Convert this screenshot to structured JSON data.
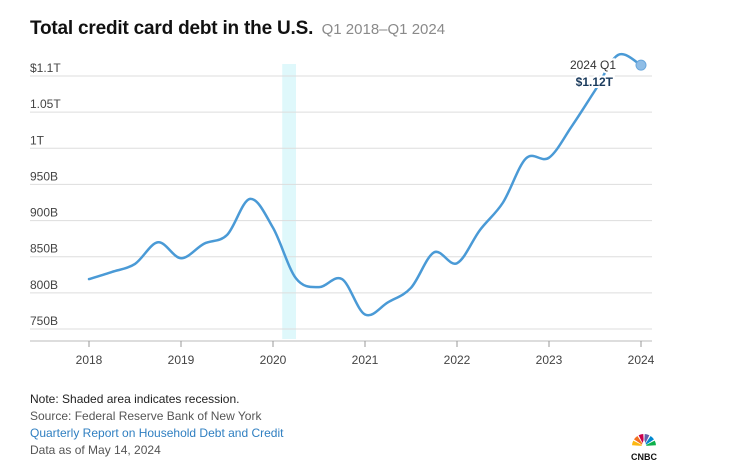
{
  "header": {
    "title": "Total credit card debt in the U.S.",
    "subtitle": "Q1 2018–Q1 2024"
  },
  "chart_data": {
    "type": "line",
    "title": "Total credit card debt in the U.S.",
    "subtitle": "Q1 2018–Q1 2024",
    "xlabel": "",
    "ylabel": "",
    "xlim": [
      2018,
      2024
    ],
    "ylim": [
      740,
      1120
    ],
    "y_ticks": [
      {
        "value": 750,
        "label": "750B"
      },
      {
        "value": 800,
        "label": "800B"
      },
      {
        "value": 850,
        "label": "850B"
      },
      {
        "value": 900,
        "label": "900B"
      },
      {
        "value": 950,
        "label": "950B"
      },
      {
        "value": 1000,
        "label": "1T"
      },
      {
        "value": 1050,
        "label": "1.05T"
      },
      {
        "value": 1100,
        "label": "$1.1T"
      }
    ],
    "x_ticks": [
      {
        "value": 2018,
        "label": "2018"
      },
      {
        "value": 2019,
        "label": "2019"
      },
      {
        "value": 2020,
        "label": "2020"
      },
      {
        "value": 2021,
        "label": "2021"
      },
      {
        "value": 2022,
        "label": "2022"
      },
      {
        "value": 2023,
        "label": "2023"
      },
      {
        "value": 2024,
        "label": "2024"
      }
    ],
    "grid": true,
    "recession": {
      "start": 2020.1,
      "end": 2020.25
    },
    "series": [
      {
        "name": "Total credit card debt",
        "color": "#4a9ad6",
        "x": [
          2018.0,
          2018.25,
          2018.5,
          2018.75,
          2019.0,
          2019.25,
          2019.5,
          2019.75,
          2020.0,
          2020.25,
          2020.5,
          2020.75,
          2021.0,
          2021.25,
          2021.5,
          2021.75,
          2022.0,
          2022.25,
          2022.5,
          2022.75,
          2023.0,
          2023.25,
          2023.5,
          2023.75,
          2024.0
        ],
        "values": [
          819,
          829,
          840,
          870,
          848,
          868,
          880,
          930,
          890,
          820,
          808,
          819,
          770,
          787,
          807,
          856,
          841,
          887,
          925,
          986,
          987,
          1031,
          1080,
          1129,
          1115
        ]
      }
    ],
    "annotation": {
      "period": "2024 Q1",
      "value": "$1.12T"
    }
  },
  "footer": {
    "note": "Note: Shaded area indicates recession.",
    "source": "Source: Federal Reserve Bank of New York",
    "link": "Quarterly Report on Household Debt and Credit",
    "date": "Data as of May 14, 2024"
  },
  "brand": {
    "logo_text": "CNBC",
    "peacock_colors": [
      "#fcb711",
      "#f37021",
      "#cc004c",
      "#6460aa",
      "#0089d0",
      "#0db14b"
    ]
  }
}
